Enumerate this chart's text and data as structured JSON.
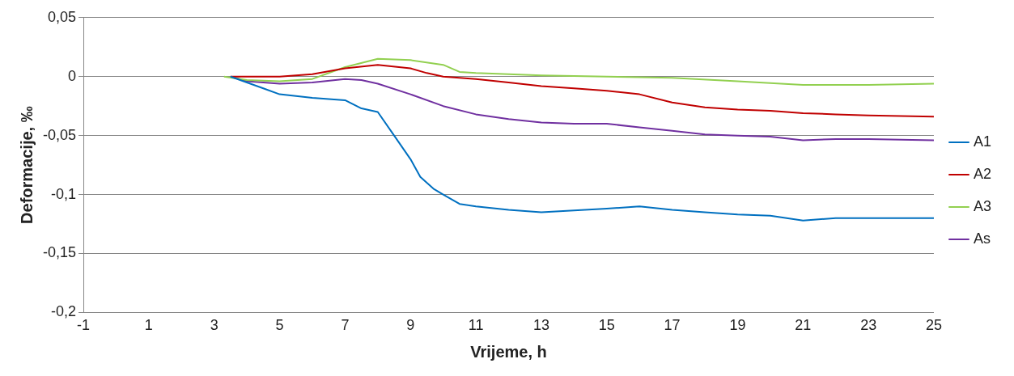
{
  "chart_data": {
    "type": "line",
    "xlabel": "Vrijeme, h",
    "ylabel": "Deformacije, ‰",
    "xlim": [
      -1,
      25
    ],
    "xticks": [
      -1,
      1,
      3,
      5,
      7,
      9,
      11,
      13,
      15,
      17,
      19,
      21,
      23,
      25
    ],
    "ylim": [
      -0.2,
      0.05
    ],
    "yticks": [
      {
        "value": 0.05,
        "label": "0,05"
      },
      {
        "value": 0,
        "label": "0"
      },
      {
        "value": -0.05,
        "label": "-0,05"
      },
      {
        "value": -0.1,
        "label": "-0,1"
      },
      {
        "value": -0.15,
        "label": "-0,15"
      },
      {
        "value": -0.2,
        "label": "-0,2"
      }
    ],
    "grid": "y",
    "legend": "right",
    "marker": "none",
    "line_style": "solid",
    "series": [
      {
        "name": "A1",
        "color": "#0070c0",
        "x": [
          3.5,
          4.5,
          5,
          6,
          7,
          7.5,
          8,
          8.5,
          9,
          9.3,
          9.7,
          10,
          10.5,
          11,
          12,
          13,
          15,
          16,
          17,
          18,
          19,
          20,
          21,
          22,
          23,
          25
        ],
        "values": [
          0,
          -0.01,
          -0.015,
          -0.018,
          -0.02,
          -0.027,
          -0.03,
          -0.05,
          -0.07,
          -0.085,
          -0.095,
          -0.1,
          -0.108,
          -0.11,
          -0.113,
          -0.115,
          -0.112,
          -0.11,
          -0.113,
          -0.115,
          -0.117,
          -0.118,
          -0.122,
          -0.12,
          -0.12,
          -0.12
        ]
      },
      {
        "name": "A2",
        "color": "#c00000",
        "x": [
          3.5,
          5,
          6,
          7,
          8,
          9,
          9.5,
          10,
          11,
          12,
          13,
          14,
          15,
          16,
          17,
          18,
          19,
          20,
          21,
          22,
          23,
          25
        ],
        "values": [
          0,
          0,
          0.002,
          0.007,
          0.01,
          0.007,
          0.003,
          0,
          -0.002,
          -0.005,
          -0.008,
          -0.01,
          -0.012,
          -0.015,
          -0.022,
          -0.026,
          -0.028,
          -0.029,
          -0.031,
          -0.032,
          -0.033,
          -0.034
        ]
      },
      {
        "name": "A3",
        "color": "#92d050",
        "x": [
          3.3,
          4,
          5,
          6,
          7,
          8,
          9,
          10,
          10.5,
          11,
          13,
          15,
          17,
          19,
          21,
          23,
          25
        ],
        "values": [
          0,
          -0.003,
          -0.004,
          -0.002,
          0.008,
          0.015,
          0.014,
          0.01,
          0.004,
          0.003,
          0.001,
          0,
          -0.001,
          -0.004,
          -0.007,
          -0.007,
          -0.006
        ]
      },
      {
        "name": "As",
        "color": "#7030a0",
        "x": [
          3.5,
          4,
          5,
          6,
          7,
          7.5,
          8,
          9,
          10,
          11,
          12,
          13,
          14,
          15,
          16,
          17,
          18,
          19,
          20,
          21,
          22,
          23,
          25
        ],
        "values": [
          0,
          -0.004,
          -0.006,
          -0.005,
          -0.002,
          -0.003,
          -0.006,
          -0.015,
          -0.025,
          -0.032,
          -0.036,
          -0.039,
          -0.04,
          -0.04,
          -0.043,
          -0.046,
          -0.049,
          -0.05,
          -0.051,
          -0.054,
          -0.053,
          -0.053,
          -0.054
        ]
      }
    ]
  }
}
